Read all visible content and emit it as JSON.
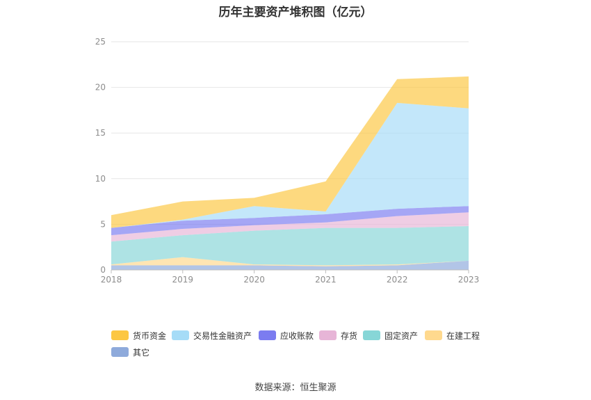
{
  "title": "历年主要资产堆积图（亿元）",
  "source_label": "数据来源：恒生聚源",
  "chart_data": {
    "type": "area",
    "stacked": true,
    "title": "历年主要资产堆积图（亿元）",
    "x": [
      "2018",
      "2019",
      "2020",
      "2021",
      "2022",
      "2023"
    ],
    "ylim": [
      0,
      25
    ],
    "yticks": [
      0,
      5,
      10,
      15,
      20,
      25
    ],
    "grid": true,
    "legend_position": "bottom",
    "series": [
      {
        "name": "其它",
        "color": "#8eaadb",
        "values": [
          0.5,
          0.5,
          0.5,
          0.4,
          0.5,
          1.0
        ]
      },
      {
        "name": "在建工程",
        "color": "#ffd98e",
        "values": [
          0.1,
          0.9,
          0.1,
          0.1,
          0.1,
          0.0
        ]
      },
      {
        "name": "固定资产",
        "color": "#87d6d7",
        "values": [
          2.5,
          2.4,
          3.7,
          4.1,
          4.0,
          3.8
        ]
      },
      {
        "name": "存货",
        "color": "#e7b5d7",
        "values": [
          0.7,
          0.7,
          0.6,
          0.6,
          1.3,
          1.5
        ]
      },
      {
        "name": "应收账款",
        "color": "#7b7cf0",
        "values": [
          0.8,
          0.9,
          0.8,
          0.9,
          0.8,
          0.7
        ]
      },
      {
        "name": "交易性金融资产",
        "color": "#a6dcf7",
        "values": [
          0.0,
          0.1,
          1.3,
          0.3,
          11.6,
          10.7
        ]
      },
      {
        "name": "货币资金",
        "color": "#fcc743",
        "values": [
          1.4,
          2.0,
          0.9,
          3.3,
          2.6,
          3.5
        ]
      }
    ]
  },
  "legend": [
    {
      "label": "货币资金",
      "color": "#fcc743"
    },
    {
      "label": "交易性金融资产",
      "color": "#a6dcf7"
    },
    {
      "label": "应收账款",
      "color": "#7b7cf0"
    },
    {
      "label": "存货",
      "color": "#e7b5d7"
    },
    {
      "label": "固定资产",
      "color": "#87d6d7"
    },
    {
      "label": "在建工程",
      "color": "#ffd98e"
    },
    {
      "label": "其它",
      "color": "#8eaadb"
    }
  ]
}
